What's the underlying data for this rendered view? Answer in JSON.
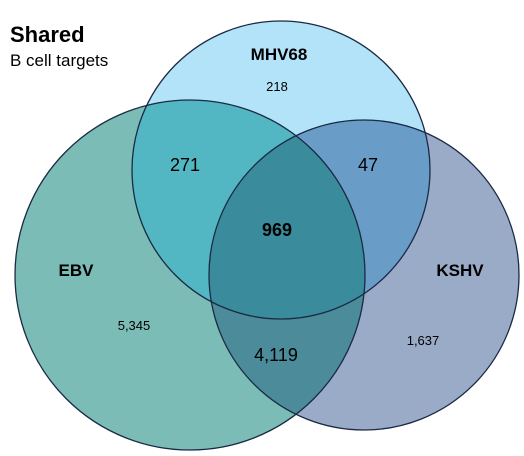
{
  "header": {
    "title": "Shared",
    "subtitle": "B cell targets"
  },
  "sets": {
    "mhv68": {
      "label": "MHV68",
      "color": "#b3e3f8"
    },
    "ebv": {
      "label": "EBV",
      "color": "#7cbcb6"
    },
    "kshv": {
      "label": "KSHV",
      "color": "#9aabc8"
    }
  },
  "regions": {
    "mhv68_only": "218",
    "ebv_only": "5,345",
    "kshv_only": "1,637",
    "ebv_mhv68": "271",
    "mhv68_kshv": "47",
    "ebv_kshv": "4,119",
    "all_three": "969"
  },
  "overlap_colors": {
    "ebv_mhv68": "#52b7c2",
    "mhv68_kshv": "#6a9cc8",
    "ebv_kshv": "#4b8b9a",
    "all_three": "#3a8c9c"
  },
  "outline_color": "#1a2a44"
}
